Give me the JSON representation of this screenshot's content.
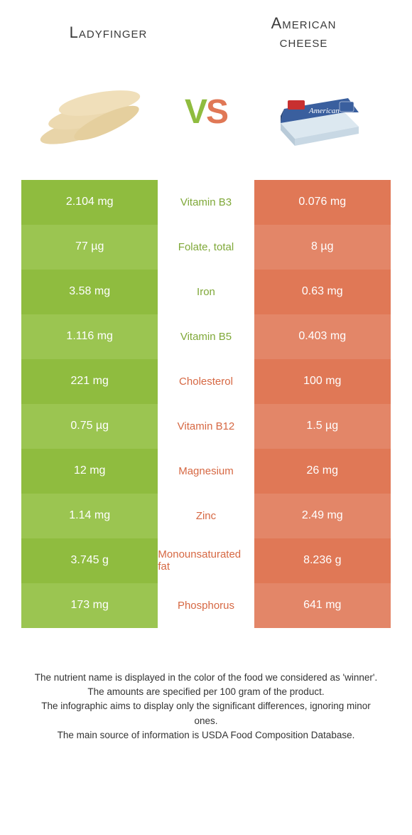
{
  "header": {
    "left_title": "Ladyfinger",
    "right_title_line1": "American",
    "right_title_line2": "cheese",
    "vs_text": "VS"
  },
  "colors": {
    "green": "#8fbc3f",
    "green_alt": "#9bc551",
    "orange": "#e07856",
    "orange_alt": "#e38668",
    "green_text": "#7fa838",
    "orange_text": "#d66843"
  },
  "rows": [
    {
      "left": "2.104 mg",
      "nutrient": "Vitamin B3",
      "right": "0.076 mg",
      "winner": "left"
    },
    {
      "left": "77 µg",
      "nutrient": "Folate, total",
      "right": "8 µg",
      "winner": "left"
    },
    {
      "left": "3.58 mg",
      "nutrient": "Iron",
      "right": "0.63 mg",
      "winner": "left"
    },
    {
      "left": "1.116 mg",
      "nutrient": "Vitamin B5",
      "right": "0.403 mg",
      "winner": "left"
    },
    {
      "left": "221 mg",
      "nutrient": "Cholesterol",
      "right": "100 mg",
      "winner": "right"
    },
    {
      "left": "0.75 µg",
      "nutrient": "Vitamin B12",
      "right": "1.5 µg",
      "winner": "right"
    },
    {
      "left": "12 mg",
      "nutrient": "Magnesium",
      "right": "26 mg",
      "winner": "right"
    },
    {
      "left": "1.14 mg",
      "nutrient": "Zinc",
      "right": "2.49 mg",
      "winner": "right"
    },
    {
      "left": "3.745 g",
      "nutrient": "Monounsaturated fat",
      "right": "8.236 g",
      "winner": "right"
    },
    {
      "left": "173 mg",
      "nutrient": "Phosphorus",
      "right": "641 mg",
      "winner": "right"
    }
  ],
  "footer": {
    "line1": "The nutrient name is displayed in the color of the food we considered as 'winner'.",
    "line2": "The amounts are specified per 100 gram of the product.",
    "line3": "The infographic aims to display only the significant differences, ignoring minor ones.",
    "line4": "The main source of information is USDA Food Composition Database."
  }
}
